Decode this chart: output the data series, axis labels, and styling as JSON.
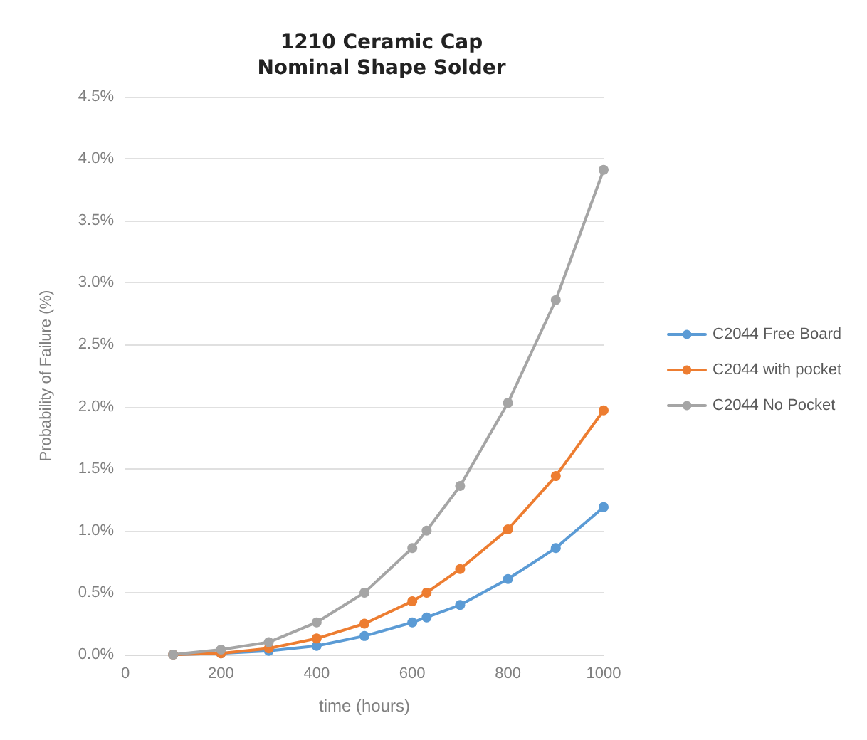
{
  "chart_data": {
    "type": "line",
    "title": "1210 Ceramic Cap\nNominal Shape Solder",
    "xlabel": "time (hours)",
    "ylabel": "Probability of Failure (%)",
    "x": [
      100,
      200,
      300,
      400,
      500,
      600,
      630,
      700,
      800,
      900,
      1000
    ],
    "series": [
      {
        "name": "C2044 Free Board",
        "color": "#5b9bd5",
        "values": [
          0,
          0.01,
          0.03,
          0.07,
          0.15,
          0.26,
          0.3,
          0.4,
          0.61,
          0.86,
          1.19
        ]
      },
      {
        "name": "C2044 with pocket",
        "color": "#ed7d31",
        "values": [
          0,
          0.01,
          0.05,
          0.13,
          0.25,
          0.43,
          0.5,
          0.69,
          1.01,
          1.44,
          1.97
        ]
      },
      {
        "name": "C2044 No Pocket",
        "color": "#a5a5a5",
        "values": [
          0,
          0.04,
          0.1,
          0.26,
          0.5,
          0.86,
          1.0,
          1.36,
          2.03,
          2.86,
          3.91
        ]
      }
    ],
    "xlim": [
      0,
      1000
    ],
    "xticks": [
      0,
      200,
      400,
      600,
      800,
      1000
    ],
    "ylim": [
      0,
      4.5
    ],
    "yticks": [
      {
        "value": 0,
        "label": "0.0%"
      },
      {
        "value": 0.5,
        "label": "0.5%"
      },
      {
        "value": 1,
        "label": "1.0%"
      },
      {
        "value": 1.5,
        "label": "1.5%"
      },
      {
        "value": 2,
        "label": "2.0%"
      },
      {
        "value": 2.5,
        "label": "2.5%"
      },
      {
        "value": 3,
        "label": "3.0%"
      },
      {
        "value": 3.5,
        "label": "3.5%"
      },
      {
        "value": 4,
        "label": "4.0%"
      },
      {
        "value": 4.5,
        "label": "4.5%"
      }
    ],
    "grid": "y",
    "legend": "right",
    "marker": "circle",
    "line_style": "solid"
  }
}
